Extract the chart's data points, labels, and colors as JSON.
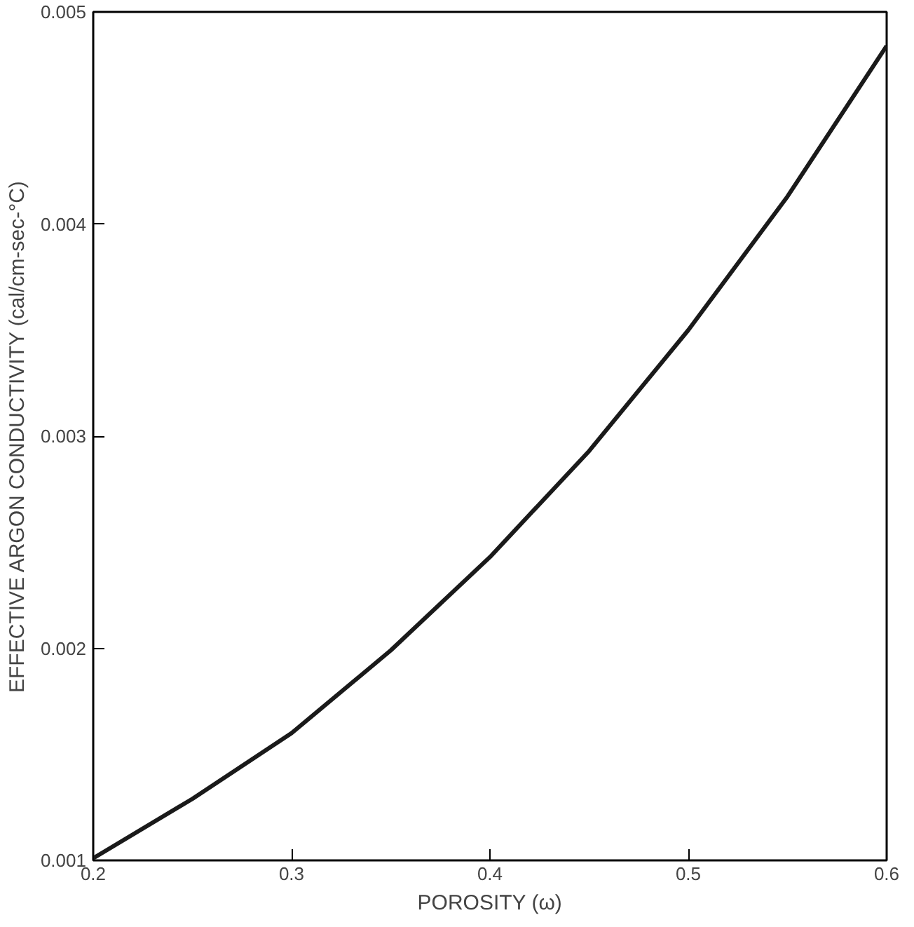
{
  "chart_data": {
    "type": "line",
    "xlabel": "POROSITY (ω)",
    "ylabel": "EFFECTIVE ARGON CONDUCTIVITY (cal/cm-sec-°C)",
    "x": [
      0.2,
      0.25,
      0.3,
      0.35,
      0.4,
      0.45,
      0.5,
      0.55,
      0.6
    ],
    "series": [
      {
        "color": "#1a1a1a",
        "values": [
          0.00101,
          0.00129,
          0.0016,
          0.00199,
          0.00243,
          0.00293,
          0.0035,
          0.00413,
          0.00484
        ]
      }
    ],
    "xlim": [
      0.2,
      0.6
    ],
    "ylim": [
      0.001,
      0.005
    ],
    "xticks": [
      0.2,
      0.3,
      0.4,
      0.5,
      0.6
    ],
    "yticks": [
      0.001,
      0.002,
      0.003,
      0.004,
      0.005
    ],
    "grid": false,
    "marker": "none",
    "line_style": "solid"
  }
}
